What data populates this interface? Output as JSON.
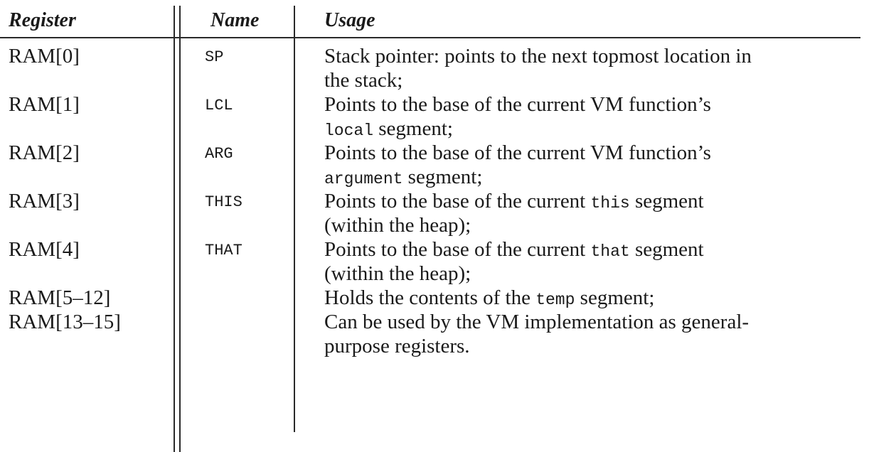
{
  "table": {
    "headers": {
      "register": "Register",
      "name": "Name",
      "usage": "Usage"
    },
    "rows": [
      {
        "register": "RAM[0]",
        "name": "SP",
        "usage_lines": [
          [
            {
              "text": "Stack pointer: points to the next topmost location in",
              "code": false
            }
          ],
          [
            {
              "text": "the stack;",
              "code": false
            }
          ]
        ]
      },
      {
        "register": "RAM[1]",
        "name": "LCL",
        "usage_lines": [
          [
            {
              "text": "Points to the base of the current VM function’s",
              "code": false
            }
          ],
          [
            {
              "text": "local",
              "code": true
            },
            {
              "text": " segment;",
              "code": false
            }
          ]
        ]
      },
      {
        "register": "RAM[2]",
        "name": "ARG",
        "usage_lines": [
          [
            {
              "text": "Points to the base of the current VM function’s",
              "code": false
            }
          ],
          [
            {
              "text": "argument",
              "code": true
            },
            {
              "text": " segment;",
              "code": false
            }
          ]
        ]
      },
      {
        "register": "RAM[3]",
        "name": "THIS",
        "usage_lines": [
          [
            {
              "text": "Points to the base of the current ",
              "code": false
            },
            {
              "text": "this",
              "code": true
            },
            {
              "text": " segment",
              "code": false
            }
          ],
          [
            {
              "text": "(within the heap);",
              "code": false
            }
          ]
        ]
      },
      {
        "register": "RAM[4]",
        "name": "THAT",
        "usage_lines": [
          [
            {
              "text": "Points to the base of the current ",
              "code": false
            },
            {
              "text": "that",
              "code": true
            },
            {
              "text": " segment",
              "code": false
            }
          ],
          [
            {
              "text": "(within the heap);",
              "code": false
            }
          ]
        ]
      },
      {
        "register": "RAM[5–12]",
        "name": "",
        "usage_lines": [
          [
            {
              "text": "Holds the contents of the ",
              "code": false
            },
            {
              "text": "temp",
              "code": true
            },
            {
              "text": " segment;",
              "code": false
            }
          ]
        ]
      },
      {
        "register": "RAM[13–15]",
        "name": "",
        "usage_lines": [
          [
            {
              "text": "Can be used by the VM implementation as general-",
              "code": false
            }
          ],
          [
            {
              "text": "purpose registers.",
              "code": false
            }
          ]
        ]
      }
    ]
  }
}
